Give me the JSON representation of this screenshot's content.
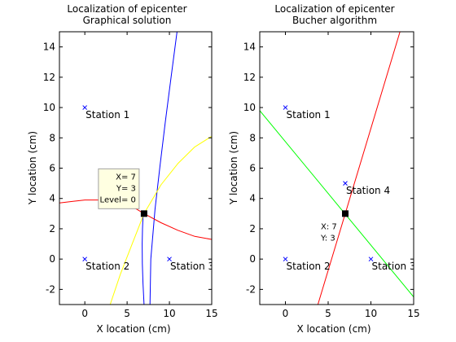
{
  "figure": {
    "width": 560,
    "height": 420,
    "background": "#ffffff"
  },
  "chart_data": [
    {
      "type": "line",
      "title": [
        "Localization of epicenter",
        "Graphical solution"
      ],
      "xlabel": "X location (cm)",
      "ylabel": "Y location (cm)",
      "xlim": [
        -3,
        15
      ],
      "ylim": [
        -3,
        15
      ],
      "xticks": [
        0,
        5,
        10,
        15
      ],
      "yticks": [
        -2,
        0,
        2,
        4,
        6,
        8,
        10,
        12,
        14
      ],
      "grid": false,
      "legend": "none",
      "stations": [
        {
          "label": "Station 1",
          "x": 0,
          "y": 10
        },
        {
          "label": "Station 2",
          "x": 0,
          "y": 0
        },
        {
          "label": "Station 3",
          "x": 10,
          "y": 0
        }
      ],
      "station_color": "#0000ff",
      "series": [
        {
          "color": "#0000ff",
          "x": [
            7.7,
            7.8,
            8.3,
            8.9,
            9.5,
            10.2,
            10.9
          ],
          "y": [
            -3,
            0,
            3.3,
            6.2,
            9.0,
            12.0,
            15.0
          ]
        },
        {
          "color": "#0000ff",
          "x": [
            6.9,
            6.82,
            6.78,
            6.8,
            6.88,
            7.0
          ],
          "y": [
            3.1,
            2.0,
            1.0,
            -0.3,
            -1.6,
            -3.0
          ]
        },
        {
          "color": "#ffff00",
          "x": [
            3.0,
            4.2,
            5.6,
            7.0,
            9.0,
            11.0,
            13.0,
            15.0
          ],
          "y": [
            -3.0,
            -1.0,
            1.0,
            3.0,
            4.9,
            6.3,
            7.4,
            8.1
          ]
        },
        {
          "color": "#ff0000",
          "x": [
            -3,
            -1.5,
            0,
            1.5,
            3.5,
            5.5,
            7.0
          ],
          "y": [
            3.7,
            3.8,
            3.9,
            3.9,
            3.8,
            3.5,
            3.0
          ]
        },
        {
          "color": "#ff0000",
          "x": [
            7.0,
            9.0,
            11.0,
            13.0,
            15.0
          ],
          "y": [
            3.0,
            2.4,
            1.9,
            1.5,
            1.3
          ]
        }
      ],
      "epicenter": {
        "x": 7,
        "y": 3
      },
      "datatip": {
        "lines": [
          "X= 7",
          "Y= 3",
          "Level= 0"
        ],
        "fill": "#ffffe1"
      }
    },
    {
      "type": "line",
      "title": [
        "Localization of epicenter",
        "Bucher algorithm"
      ],
      "xlabel": "X location (cm)",
      "ylabel": "Y location (cm)",
      "xlim": [
        -3,
        15
      ],
      "ylim": [
        -3,
        15
      ],
      "xticks": [
        0,
        5,
        10,
        15
      ],
      "yticks": [
        -2,
        0,
        2,
        4,
        6,
        8,
        10,
        12,
        14
      ],
      "grid": false,
      "legend": "none",
      "stations": [
        {
          "label": "Station 1",
          "x": 0,
          "y": 10
        },
        {
          "label": "Station 2",
          "x": 0,
          "y": 0
        },
        {
          "label": "Station 3",
          "x": 10,
          "y": 0
        },
        {
          "label": "Station 4",
          "x": 7,
          "y": 5
        }
      ],
      "station_color": "#0000ff",
      "series": [
        {
          "color": "#00ff00",
          "x": [
            -3,
            15
          ],
          "y": [
            9.8,
            -2.5
          ]
        },
        {
          "color": "#ff0000",
          "x": [
            3.8,
            13.4
          ],
          "y": [
            -3.0,
            15.0
          ]
        }
      ],
      "epicenter": {
        "x": 7,
        "y": 3
      },
      "point_label": [
        "X: 7",
        "Y: 3"
      ]
    }
  ]
}
